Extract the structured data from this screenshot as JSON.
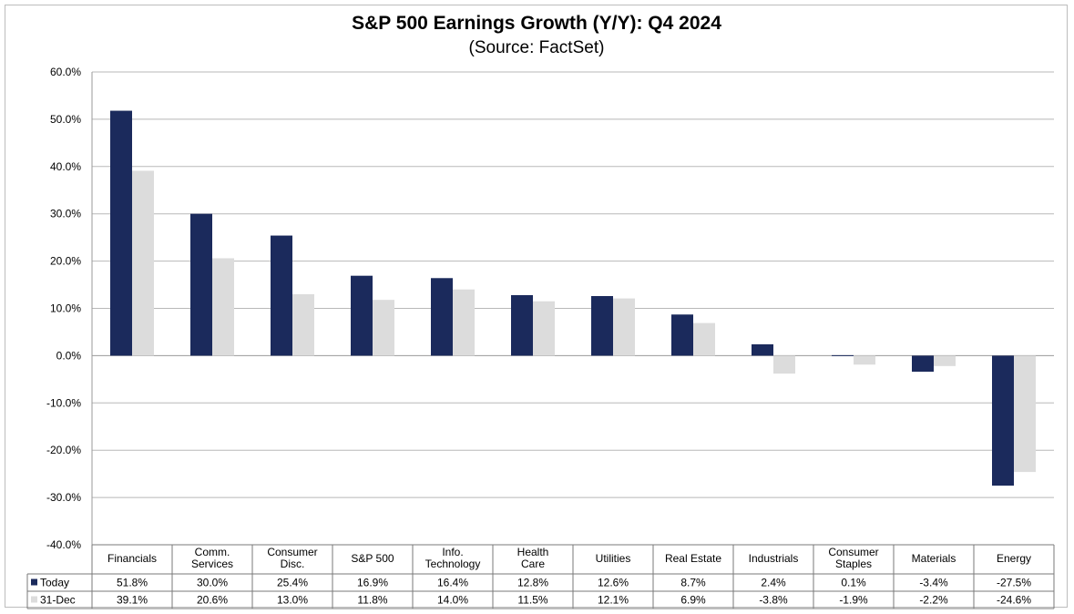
{
  "chart_data": {
    "type": "bar",
    "title": "S&P 500 Earnings Growth (Y/Y): Q4 2024",
    "subtitle": "(Source: FactSet)",
    "xlabel": "",
    "ylabel": "",
    "ylim": [
      -40,
      60
    ],
    "yticks": [
      60,
      50,
      40,
      30,
      20,
      10,
      0,
      -10,
      -20,
      -30,
      -40
    ],
    "ytick_labels": [
      "60.0%",
      "50.0%",
      "40.0%",
      "30.0%",
      "20.0%",
      "10.0%",
      "0.0%",
      "-10.0%",
      "-20.0%",
      "-30.0%",
      "-40.0%"
    ],
    "grid": true,
    "legend_position": "bottom-left (data table)",
    "categories": [
      [
        "Financials"
      ],
      [
        "Comm.",
        "Services"
      ],
      [
        "Consumer",
        "Disc."
      ],
      [
        "S&P 500"
      ],
      [
        "Info.",
        "Technology"
      ],
      [
        "Health",
        "Care"
      ],
      [
        "Utilities"
      ],
      [
        "Real Estate"
      ],
      [
        "Industrials"
      ],
      [
        "Consumer",
        "Staples"
      ],
      [
        "Materials"
      ],
      [
        "Energy"
      ]
    ],
    "series": [
      {
        "name": "Today",
        "color": "#1b2a5c",
        "values": [
          51.8,
          30.0,
          25.4,
          16.9,
          16.4,
          12.8,
          12.6,
          8.7,
          2.4,
          0.1,
          -3.4,
          -27.5
        ],
        "labels": [
          "51.8%",
          "30.0%",
          "25.4%",
          "16.9%",
          "16.4%",
          "12.8%",
          "12.6%",
          "8.7%",
          "2.4%",
          "0.1%",
          "-3.4%",
          "-27.5%"
        ]
      },
      {
        "name": "31-Dec",
        "color": "#dcdcdc",
        "values": [
          39.1,
          20.6,
          13.0,
          11.8,
          14.0,
          11.5,
          12.1,
          6.9,
          -3.8,
          -1.9,
          -2.2,
          -24.6
        ],
        "labels": [
          "39.1%",
          "20.6%",
          "13.0%",
          "11.8%",
          "14.0%",
          "11.5%",
          "12.1%",
          "6.9%",
          "-3.8%",
          "-1.9%",
          "-2.2%",
          "-24.6%"
        ]
      }
    ]
  }
}
